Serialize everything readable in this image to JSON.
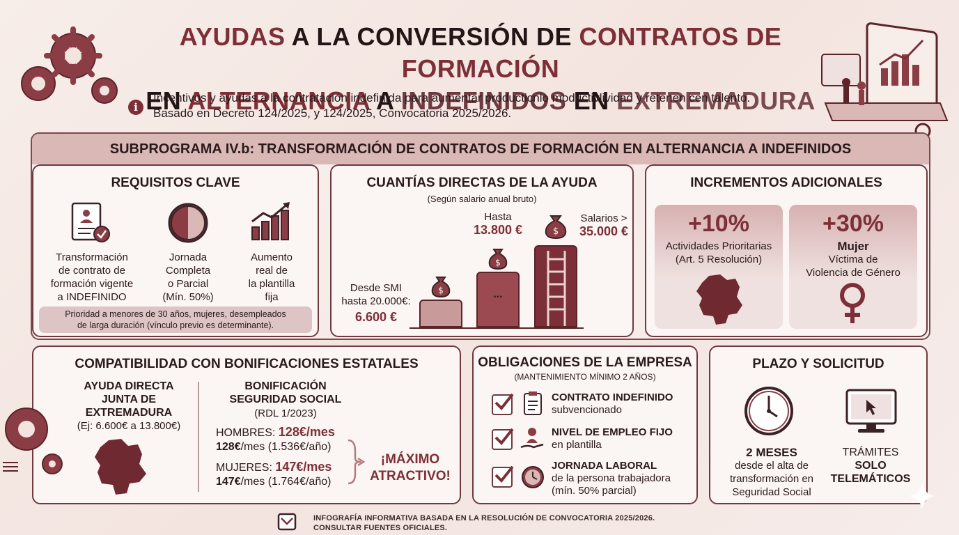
{
  "title": {
    "line1_part1": "AYUDAS",
    "line1_part2": " A LA CONVERSIÓN DE ",
    "line1_part3": "CONTRATOS DE FORMACIÓN",
    "line2_part1": "EN ",
    "line2_part2": "ALTERNANCIA",
    "line2_part3": " A ",
    "line2_part4": "INDEFINIDOS",
    "line2_part5": " EN ",
    "line2_part6": "EXTREMADURA"
  },
  "subtitle": {
    "line1": "Incentivos y ayudas a la contratación indefinida para aumentar producticnlo moductivlividad y retenen cen talento.",
    "line2": "Basado en Decreto 124/2025, y  124/2025, Convocatoria 2025/2026."
  },
  "section_header": "SUBPROGRAMA IV.b: TRANSFORMACIÓN DE CONTRATOS DE FORMACIÓN EN ALTERNANCIA A INDEFINIDOS",
  "requisitos": {
    "title": "REQUISITOS CLAVE",
    "item1": [
      "Transformación",
      "de contrato de",
      "formación vigente",
      "a INDEFINIDO"
    ],
    "item2": [
      "Jornada",
      "Completa",
      "o Parcial",
      "(Mín. 50%)"
    ],
    "item3": [
      "Aumento",
      "real de",
      "la plantilla",
      "fija"
    ],
    "note_line1": "Prioridad a menores de 30 años, mujeres, desempleados",
    "note_line2": "de larga duración (vínculo previo es determinante)."
  },
  "cuantias": {
    "title": "CUANTÍAS DIRECTAS DE LA AYUDA",
    "subtitle": "(Según salario anual bruto)",
    "low_label1": "Desde SMI",
    "low_label2": "hasta 20.000€:",
    "low_value": "6.600 €",
    "mid_label": "Hasta",
    "mid_value": "13.800 €",
    "mid_bar_text": "...",
    "high_label": "Salarios >",
    "high_value": "35.000 €"
  },
  "incrementos": {
    "title": "INCREMENTOS ADICIONALES",
    "box1_pct": "+10%",
    "box1_line1": "Actividades Prioritarias",
    "box1_line2": "(Art. 5 Resolución)",
    "box2_pct": "+30%",
    "box2_line1": "Mujer",
    "box2_line2": "Víctima de",
    "box2_line3": "Violencia de Género"
  },
  "compatibilidad": {
    "title": "COMPATIBILIDAD CON BONIFICACIONES ESTATALES",
    "left_line1": "AYUDA DIRECTA",
    "left_line2": "JUNTA DE",
    "left_line3": "EXTREMADURA",
    "left_line4": "(Ej: 6.600€ a 13.800€)",
    "right_line1": "BONIFICACIÓN",
    "right_line2": "SEGURIDAD SOCIAL",
    "right_line3": "(RDL 1/2023)",
    "hombres_label": "HOMBRES: ",
    "hombres_value": "128€/mes",
    "hombres_detail_bold": "128€",
    "hombres_detail": "/mes (1.536€/año)",
    "mujeres_label": "MUJERES: ",
    "mujeres_value": "147€/mes",
    "mujeres_detail_bold": "147€",
    "mujeres_detail": "/mes (1.764€/año)",
    "highlight_line1": "¡MÁXIMO",
    "highlight_line2": "ATRACTIVO!"
  },
  "obligaciones": {
    "title": "OBLIGACIONES DE LA EMPRESA",
    "subtitle": "(MANTENIMIENTO MÍNIMO 2 AÑOS)",
    "item1_bold": "CONTRATO INDEFINIDO",
    "item1_text": "subvencionado",
    "item2_bold": "NIVEL DE EMPLEO FIJO",
    "item2_text": "en plantilla",
    "item3_bold": "JORNADA LABORAL",
    "item3_text1": "de la persona trabajadora",
    "item3_text2": "(mín. 50% parcial)"
  },
  "plazo": {
    "title": "PLAZO Y SOLICITUD",
    "left_bold": "2 MESES",
    "left_line1": "desde el alta de",
    "left_line2": "transformación en",
    "left_line3": "Seguridad Social",
    "right_line1": "TRÁMITES",
    "right_bold1": "SOLO",
    "right_bold2": "TELEMÁTICOS"
  },
  "footer": {
    "line1": "INFOGRAFÍA INFORMATIVA BASADA EN LA RESOLUCIÓN DE CONVOCATORIA 2025/2026.",
    "line2": "CONSULTAR FUENTES OFICIALES."
  },
  "colors": {
    "accent": "#7d2f37",
    "dark": "#2a1a1c",
    "background": "#f5e8e4"
  }
}
